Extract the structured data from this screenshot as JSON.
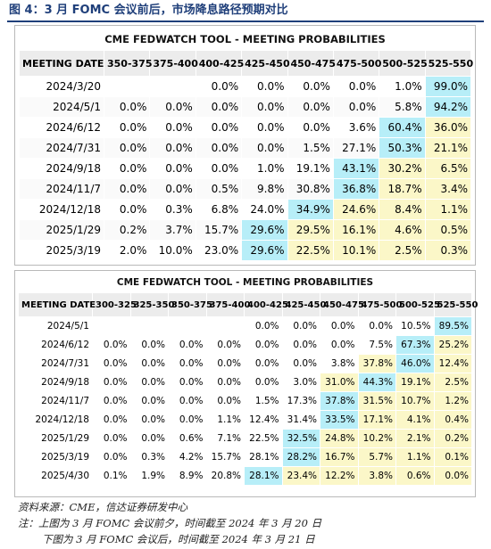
{
  "figure": {
    "title": "图 4：3 月 FOMC 会议前后，市场降息路径预期对比"
  },
  "table_top": {
    "title": "CME FEDWATCH TOOL - MEETING PROBABILITIES",
    "headers": [
      "MEETING DATE",
      "350-375",
      "375-400",
      "400-425",
      "425-450",
      "450-475",
      "475-500",
      "500-525",
      "525-550"
    ],
    "rows": [
      {
        "date": "2024/3/20",
        "values": [
          "",
          "",
          "0.0%",
          "0.0%",
          "0.0%",
          "0.0%",
          "1.0%",
          "99.0%"
        ],
        "styles": [
          "",
          "",
          "",
          "",
          "",
          "",
          "",
          "hl"
        ]
      },
      {
        "date": "2024/5/1",
        "values": [
          "0.0%",
          "0.0%",
          "0.0%",
          "0.0%",
          "0.0%",
          "0.0%",
          "5.8%",
          "94.2%"
        ],
        "styles": [
          "",
          "",
          "",
          "",
          "",
          "",
          "",
          "hl"
        ]
      },
      {
        "date": "2024/6/12",
        "values": [
          "0.0%",
          "0.0%",
          "0.0%",
          "0.0%",
          "0.0%",
          "3.6%",
          "60.4%",
          "36.0%"
        ],
        "styles": [
          "",
          "",
          "",
          "",
          "",
          "",
          "hl",
          "soft"
        ]
      },
      {
        "date": "2024/7/31",
        "values": [
          "0.0%",
          "0.0%",
          "0.0%",
          "0.0%",
          "1.5%",
          "27.1%",
          "50.3%",
          "21.1%"
        ],
        "styles": [
          "",
          "",
          "",
          "",
          "",
          "",
          "hl",
          "soft"
        ]
      },
      {
        "date": "2024/9/18",
        "values": [
          "0.0%",
          "0.0%",
          "0.0%",
          "1.0%",
          "19.1%",
          "43.1%",
          "30.2%",
          "6.5%"
        ],
        "styles": [
          "",
          "",
          "",
          "",
          "",
          "hl",
          "soft",
          "soft"
        ]
      },
      {
        "date": "2024/11/7",
        "values": [
          "0.0%",
          "0.0%",
          "0.5%",
          "9.8%",
          "30.8%",
          "36.8%",
          "18.7%",
          "3.4%"
        ],
        "styles": [
          "",
          "",
          "",
          "",
          "",
          "hl",
          "soft",
          "soft"
        ]
      },
      {
        "date": "2024/12/18",
        "values": [
          "0.0%",
          "0.3%",
          "6.8%",
          "24.0%",
          "34.9%",
          "24.6%",
          "8.4%",
          "1.1%"
        ],
        "styles": [
          "",
          "",
          "",
          "",
          "hl",
          "soft",
          "soft",
          "soft"
        ]
      },
      {
        "date": "2025/1/29",
        "values": [
          "0.2%",
          "3.7%",
          "15.7%",
          "29.6%",
          "29.5%",
          "16.1%",
          "4.6%",
          "0.5%"
        ],
        "styles": [
          "",
          "",
          "",
          "hl",
          "soft",
          "soft",
          "soft",
          "soft"
        ]
      },
      {
        "date": "2025/3/19",
        "values": [
          "2.0%",
          "10.0%",
          "23.0%",
          "29.6%",
          "22.5%",
          "10.1%",
          "2.5%",
          "0.3%"
        ],
        "styles": [
          "",
          "",
          "",
          "hl",
          "soft",
          "soft",
          "soft",
          "soft"
        ]
      }
    ]
  },
  "table_bottom": {
    "title": "CME FEDWATCH TOOL - MEETING PROBABILITIES",
    "headers": [
      "MEETING DATE",
      "300-325",
      "325-350",
      "350-375",
      "375-400",
      "400-425",
      "425-450",
      "450-475",
      "475-500",
      "500-525",
      "525-550"
    ],
    "rows": [
      {
        "date": "2024/5/1",
        "values": [
          "",
          "",
          "",
          "",
          "0.0%",
          "0.0%",
          "0.0%",
          "0.0%",
          "10.5%",
          "89.5%"
        ],
        "styles": [
          "",
          "",
          "",
          "",
          "",
          "",
          "",
          "",
          "",
          "hl"
        ]
      },
      {
        "date": "2024/6/12",
        "values": [
          "0.0%",
          "0.0%",
          "0.0%",
          "0.0%",
          "0.0%",
          "0.0%",
          "0.0%",
          "7.5%",
          "67.3%",
          "25.2%"
        ],
        "styles": [
          "",
          "",
          "",
          "",
          "",
          "",
          "",
          "",
          "hl",
          "soft"
        ]
      },
      {
        "date": "2024/7/31",
        "values": [
          "0.0%",
          "0.0%",
          "0.0%",
          "0.0%",
          "0.0%",
          "0.0%",
          "3.8%",
          "37.8%",
          "46.0%",
          "12.4%"
        ],
        "styles": [
          "",
          "",
          "",
          "",
          "",
          "",
          "",
          "soft",
          "hl",
          "soft"
        ]
      },
      {
        "date": "2024/9/18",
        "values": [
          "0.0%",
          "0.0%",
          "0.0%",
          "0.0%",
          "0.0%",
          "3.0%",
          "31.0%",
          "44.3%",
          "19.1%",
          "2.5%"
        ],
        "styles": [
          "",
          "",
          "",
          "",
          "",
          "",
          "soft",
          "hl",
          "soft",
          "soft"
        ]
      },
      {
        "date": "2024/11/7",
        "values": [
          "0.0%",
          "0.0%",
          "0.0%",
          "0.0%",
          "1.5%",
          "17.3%",
          "37.8%",
          "31.5%",
          "10.7%",
          "1.2%"
        ],
        "styles": [
          "",
          "",
          "",
          "",
          "",
          "",
          "hl",
          "soft",
          "soft",
          "soft"
        ]
      },
      {
        "date": "2024/12/18",
        "values": [
          "0.0%",
          "0.0%",
          "0.0%",
          "1.1%",
          "12.4%",
          "31.4%",
          "33.5%",
          "17.1%",
          "4.1%",
          "0.4%"
        ],
        "styles": [
          "",
          "",
          "",
          "",
          "",
          "",
          "hl",
          "soft",
          "soft",
          "soft"
        ]
      },
      {
        "date": "2025/1/29",
        "values": [
          "0.0%",
          "0.0%",
          "0.6%",
          "7.1%",
          "22.5%",
          "32.5%",
          "24.8%",
          "10.2%",
          "2.1%",
          "0.2%"
        ],
        "styles": [
          "",
          "",
          "",
          "",
          "",
          "hl",
          "soft",
          "soft",
          "soft",
          "soft"
        ]
      },
      {
        "date": "2025/3/19",
        "values": [
          "0.0%",
          "0.3%",
          "4.2%",
          "15.7%",
          "28.1%",
          "28.2%",
          "16.7%",
          "5.7%",
          "1.1%",
          "0.1%"
        ],
        "styles": [
          "",
          "",
          "",
          "",
          "",
          "hl",
          "soft",
          "soft",
          "soft",
          "soft"
        ]
      },
      {
        "date": "2025/4/30",
        "values": [
          "0.1%",
          "1.9%",
          "8.9%",
          "20.8%",
          "28.1%",
          "23.4%",
          "12.2%",
          "3.8%",
          "0.6%",
          "0.0%"
        ],
        "styles": [
          "",
          "",
          "",
          "",
          "hl",
          "soft",
          "soft",
          "soft",
          "soft",
          "soft"
        ]
      }
    ]
  },
  "notes": {
    "source": "资料来源：CME，信达证券研发中心",
    "note_line_1": "注：上图为 3 月 FOMC 会议前夕，时间截至 2024 年 3 月 20 日",
    "note_line_2": "下图为 3 月 FOMC 会议后，时间截至 2024 年 3 月 21 日"
  },
  "colors": {
    "title_blue": "#1f3f7a",
    "highlight_cyan": "#b7eef8",
    "highlight_yellow": "#fbf7c8",
    "header_gray": "#ececec"
  }
}
